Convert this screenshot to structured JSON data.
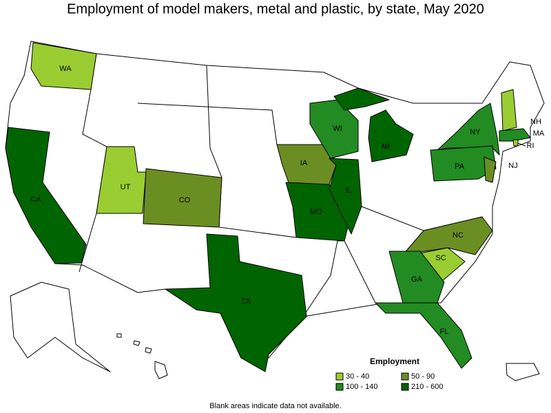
{
  "title": "Employment of model makers, metal and plastic, by state, May 2020",
  "legend": {
    "title": "Employment",
    "items": [
      {
        "range": "30 - 40",
        "color": "#9acd32"
      },
      {
        "range": "50 - 90",
        "color": "#6b8e23"
      },
      {
        "range": "100 - 140",
        "color": "#228b22"
      },
      {
        "range": "210 - 600",
        "color": "#006400"
      }
    ]
  },
  "states": [
    {
      "label": "WA",
      "employment": "30 - 40"
    },
    {
      "label": "CA",
      "employment": "210 - 600"
    },
    {
      "label": "UT",
      "employment": "30 - 40"
    },
    {
      "label": "CO",
      "employment": "50 - 90"
    },
    {
      "label": "TX",
      "employment": "210 - 600"
    },
    {
      "label": "IA",
      "employment": "50 - 90"
    },
    {
      "label": "MO",
      "employment": "210 - 600"
    },
    {
      "label": "IL",
      "employment": "210 - 600"
    },
    {
      "label": "WI",
      "employment": "100 - 140"
    },
    {
      "label": "MI",
      "employment": "210 - 600"
    },
    {
      "label": "NY",
      "employment": "100 - 140"
    },
    {
      "label": "PA",
      "employment": "100 - 140"
    },
    {
      "label": "NJ",
      "employment": "50 - 90"
    },
    {
      "label": "NC",
      "employment": "50 - 90"
    },
    {
      "label": "SC",
      "employment": "30 - 40"
    },
    {
      "label": "GA",
      "employment": "100 - 140"
    },
    {
      "label": "FL",
      "employment": "100 - 140"
    },
    {
      "label": "NH",
      "employment": "30 - 40"
    },
    {
      "label": "MA",
      "employment": "100 - 140"
    },
    {
      "label": "RI",
      "employment": "30 - 40"
    }
  ],
  "footnote": "Blank areas indicate data not available."
}
